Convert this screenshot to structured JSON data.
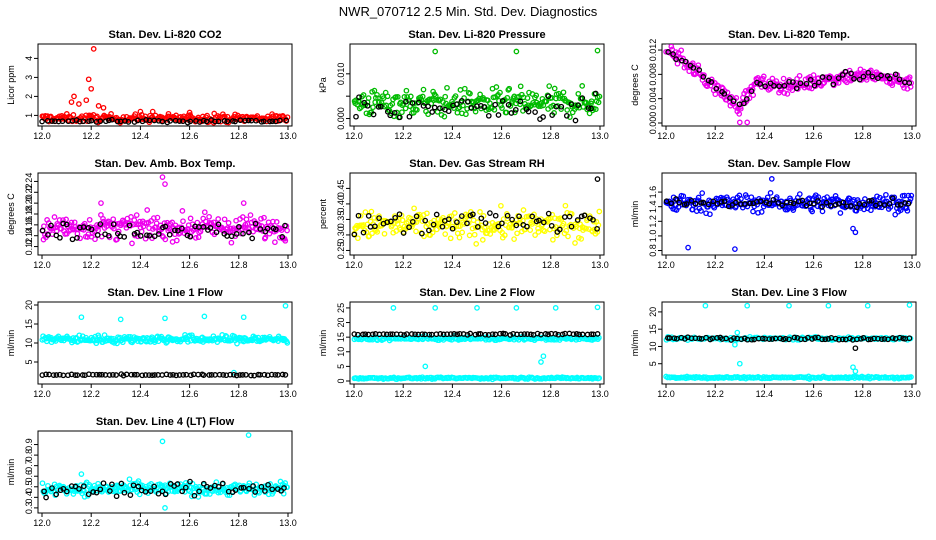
{
  "title": "NWR_070712  2.5 Min. Std. Dev. Diagnostics",
  "chart_data": [
    {
      "type": "scatter",
      "title": "Stan. Dev. Li-820 CO2",
      "ylabel": "Licor ppm",
      "color": "#ff0000",
      "xlim": [
        12.0,
        13.0
      ],
      "ylim": [
        0.6,
        4.6
      ],
      "xticks": [
        "12.0",
        "12.2",
        "12.4",
        "12.6",
        "12.8",
        "13.0"
      ],
      "yticks": [
        {
          "v": 1,
          "label": "1"
        },
        {
          "v": 2,
          "label": "2"
        },
        {
          "v": 3,
          "label": "3"
        },
        {
          "v": 4,
          "label": "4"
        }
      ],
      "series": [
        {
          "name": "colored",
          "color": "#ff0000",
          "base": 0.85,
          "spread": 0.2,
          "n": 230,
          "extra": [
            [
              12.21,
              4.5
            ],
            [
              12.19,
              2.9
            ],
            [
              12.2,
              2.4
            ],
            [
              12.13,
              2.0
            ],
            [
              12.12,
              1.7
            ],
            [
              12.15,
              1.6
            ],
            [
              12.18,
              1.8
            ],
            [
              12.23,
              1.5
            ],
            [
              12.25,
              1.4
            ],
            [
              12.4,
              1.2
            ],
            [
              12.45,
              1.2
            ],
            [
              12.7,
              1.1
            ],
            [
              12.6,
              1.15
            ]
          ]
        },
        {
          "name": "black",
          "color": "#000000",
          "base": 0.7,
          "spread": 0.06,
          "n": 60,
          "extra": []
        }
      ]
    },
    {
      "type": "scatter",
      "title": "Stan. Dev. Li-820 Pressure",
      "ylabel": "kPa",
      "color": "#00bb00",
      "xlim": [
        12.0,
        13.0
      ],
      "ylim": [
        -0.001,
        0.016
      ],
      "xticks": [
        "12.0",
        "12.2",
        "12.4",
        "12.6",
        "12.8",
        "13.0"
      ],
      "yticks": [
        {
          "v": 0.0,
          "label": "0.000"
        },
        {
          "v": 0.005,
          "label": ""
        },
        {
          "v": 0.01,
          "label": "0.010"
        }
      ],
      "series": [
        {
          "name": "colored",
          "color": "#00bb00",
          "base": 0.0035,
          "spread": 0.003,
          "n": 260,
          "extra": [
            [
              12.33,
              0.015
            ],
            [
              12.66,
              0.015
            ],
            [
              12.99,
              0.0152
            ]
          ]
        },
        {
          "name": "black",
          "color": "#000000",
          "base": 0.0025,
          "spread": 0.0025,
          "n": 55,
          "extra": []
        }
      ]
    },
    {
      "type": "scatter",
      "title": "Stan. Dev. Li-820 Temp.",
      "ylabel": "degrees C",
      "color": "#ee00ee",
      "xlim": [
        12.0,
        13.0
      ],
      "ylim": [
        0.0,
        0.0125
      ],
      "xticks": [
        "12.0",
        "12.2",
        "12.4",
        "12.6",
        "12.8",
        "13.0"
      ],
      "yticks": [
        {
          "v": 0.0,
          "label": "0.000"
        },
        {
          "v": 0.004,
          "label": "0.004"
        },
        {
          "v": 0.008,
          "label": "0.008"
        },
        {
          "v": 0.012,
          "label": "0.012"
        }
      ],
      "series": [
        {
          "name": "colored",
          "color": "#ee00ee",
          "base": -1,
          "spread": 0.0012,
          "n": 260,
          "extra": [
            [
              12.3,
              0.0001
            ],
            [
              12.33,
              0.0001
            ]
          ]
        },
        {
          "name": "black",
          "color": "#000000",
          "base": -1,
          "spread": 0.0008,
          "n": 55,
          "extra": []
        }
      ]
    },
    {
      "type": "scatter",
      "title": "Stan. Dev. Amb. Box Temp.",
      "ylabel": "degrees C",
      "color": "#ee00ee",
      "xlim": [
        12.0,
        13.0
      ],
      "ylim": [
        0.11,
        0.25
      ],
      "xticks": [
        "12.0",
        "12.2",
        "12.4",
        "12.6",
        "12.8",
        "13.0"
      ],
      "yticks": [
        {
          "v": 0.12,
          "label": "0.12"
        },
        {
          "v": 0.14,
          "label": "0.14"
        },
        {
          "v": 0.16,
          "label": "0.16"
        },
        {
          "v": 0.18,
          "label": "0.18"
        },
        {
          "v": 0.2,
          "label": "0.20"
        },
        {
          "v": 0.22,
          "label": "0.22"
        },
        {
          "v": 0.24,
          "label": "0.24"
        }
      ],
      "series": [
        {
          "name": "colored",
          "color": "#ee00ee",
          "base": 0.155,
          "spread": 0.022,
          "n": 260,
          "extra": [
            [
              12.49,
              0.248
            ],
            [
              12.5,
              0.235
            ],
            [
              12.24,
              0.2
            ],
            [
              12.82,
              0.2
            ]
          ]
        },
        {
          "name": "black",
          "color": "#000000",
          "base": 0.15,
          "spread": 0.015,
          "n": 60,
          "extra": []
        }
      ]
    },
    {
      "type": "scatter",
      "title": "Stan. Dev. Gas Stream RH",
      "ylabel": "percent",
      "color": "#ffff00",
      "xlim": [
        12.0,
        13.0
      ],
      "ylim": [
        0.245,
        0.49
      ],
      "xticks": [
        "12.0",
        "12.2",
        "12.4",
        "12.6",
        "12.8",
        "13.0"
      ],
      "yticks": [
        {
          "v": 0.25,
          "label": "0.25"
        },
        {
          "v": 0.3,
          "label": "0.30"
        },
        {
          "v": 0.35,
          "label": "0.35"
        },
        {
          "v": 0.4,
          "label": "0.40"
        },
        {
          "v": 0.45,
          "label": "0.45"
        }
      ],
      "series": [
        {
          "name": "colored",
          "color": "#ffff00",
          "base": 0.33,
          "spread": 0.045,
          "n": 260,
          "extra": []
        },
        {
          "name": "black",
          "color": "#000000",
          "base": 0.34,
          "spread": 0.04,
          "n": 60,
          "extra": [
            [
              12.99,
              0.48
            ]
          ]
        }
      ]
    },
    {
      "type": "scatter",
      "title": "Stan. Dev. Sample Flow",
      "ylabel": "ml/min",
      "color": "#0000ff",
      "xlim": [
        12.0,
        13.0
      ],
      "ylim": [
        0.78,
        1.82
      ],
      "xticks": [
        "12.0",
        "12.2",
        "12.4",
        "12.6",
        "12.8",
        "13.0"
      ],
      "yticks": [
        {
          "v": 0.8,
          "label": "0.8"
        },
        {
          "v": 1.0,
          "label": "1.0"
        },
        {
          "v": 1.2,
          "label": "1.2"
        },
        {
          "v": 1.4,
          "label": "1.4"
        },
        {
          "v": 1.6,
          "label": "1.6"
        }
      ],
      "series": [
        {
          "name": "colored",
          "color": "#0000ff",
          "base": 1.45,
          "spread": 0.12,
          "n": 260,
          "extra": [
            [
              12.09,
              0.84
            ],
            [
              12.28,
              0.82
            ],
            [
              12.43,
              1.78
            ],
            [
              12.76,
              1.1
            ],
            [
              12.77,
              1.05
            ]
          ]
        },
        {
          "name": "black",
          "color": "#000000",
          "base": 1.45,
          "spread": 0.05,
          "n": 60,
          "extra": []
        }
      ]
    },
    {
      "type": "scatter",
      "title": "Stan. Dev. Line 1 Flow",
      "ylabel": "ml/min",
      "color": "#00ffff",
      "xlim": [
        12.0,
        13.0
      ],
      "ylim": [
        0.0,
        20.0
      ],
      "xticks": [
        "12.0",
        "12.2",
        "12.4",
        "12.6",
        "12.8",
        "13.0"
      ],
      "yticks": [
        {
          "v": 5,
          "label": "5"
        },
        {
          "v": 10,
          "label": "10"
        },
        {
          "v": 15,
          "label": "15"
        },
        {
          "v": 20,
          "label": "20"
        }
      ],
      "series": [
        {
          "name": "colored",
          "color": "#00ffff",
          "base": 11.0,
          "spread": 1.0,
          "n": 260,
          "extra": [
            [
              12.16,
              16.8
            ],
            [
              12.32,
              16.2
            ],
            [
              12.5,
              16.5
            ],
            [
              12.66,
              17.0
            ],
            [
              12.82,
              16.8
            ],
            [
              12.99,
              19.8
            ],
            [
              12.78,
              2.2
            ]
          ]
        },
        {
          "name": "black",
          "color": "#000000",
          "base": 1.6,
          "spread": 0.15,
          "n": 70,
          "extra": []
        }
      ]
    },
    {
      "type": "scatter",
      "title": "Stan. Dev. Line 2 Flow",
      "ylabel": "ml/min",
      "color": "#00ffff",
      "xlim": [
        12.0,
        13.0
      ],
      "ylim": [
        0.0,
        26.0
      ],
      "xticks": [
        "12.0",
        "12.2",
        "12.4",
        "12.6",
        "12.8",
        "13.0"
      ],
      "yticks": [
        {
          "v": 0,
          "label": "0"
        },
        {
          "v": 5,
          "label": "5"
        },
        {
          "v": 10,
          "label": "10"
        },
        {
          "v": 15,
          "label": "15"
        },
        {
          "v": 20,
          "label": "20"
        },
        {
          "v": 25,
          "label": "25"
        }
      ],
      "series": [
        {
          "name": "colored",
          "color": "#00ffff",
          "base": 14.5,
          "spread": 0.6,
          "n": 180,
          "extra": [
            [
              12.16,
              25.0
            ],
            [
              12.33,
              25.0
            ],
            [
              12.5,
              25.0
            ],
            [
              12.66,
              25.0
            ],
            [
              12.82,
              25.0
            ],
            [
              12.99,
              25.2
            ],
            [
              12.29,
              5.0
            ],
            [
              12.76,
              6.5
            ],
            [
              12.77,
              8.5
            ]
          ]
        },
        {
          "name": "colored-low",
          "color": "#00ffff",
          "base": 1.0,
          "spread": 0.3,
          "n": 180,
          "extra": []
        },
        {
          "name": "black",
          "color": "#000000",
          "base": 16.0,
          "spread": 0.3,
          "n": 70,
          "extra": []
        }
      ]
    },
    {
      "type": "scatter",
      "title": "Stan. Dev. Line 3 Flow",
      "ylabel": "ml/min",
      "color": "#00ffff",
      "xlim": [
        12.0,
        13.0
      ],
      "ylim": [
        0.0,
        22.0
      ],
      "xticks": [
        "12.0",
        "12.2",
        "12.4",
        "12.6",
        "12.8",
        "13.0"
      ],
      "yticks": [
        {
          "v": 5,
          "label": "5"
        },
        {
          "v": 10,
          "label": "10"
        },
        {
          "v": 15,
          "label": "15"
        },
        {
          "v": 20,
          "label": "20"
        }
      ],
      "series": [
        {
          "name": "colored",
          "color": "#00ffff",
          "base": 12.3,
          "spread": 0.4,
          "n": 150,
          "extra": [
            [
              12.16,
              21.8
            ],
            [
              12.33,
              21.8
            ],
            [
              12.5,
              21.8
            ],
            [
              12.66,
              21.8
            ],
            [
              12.82,
              21.8
            ],
            [
              12.99,
              22.0
            ],
            [
              12.28,
              10.5
            ],
            [
              12.29,
              14.0
            ],
            [
              12.3,
              5.0
            ],
            [
              12.76,
              4.0
            ],
            [
              12.77,
              2.8
            ]
          ]
        },
        {
          "name": "colored-low",
          "color": "#00ffff",
          "base": 1.0,
          "spread": 0.3,
          "n": 180,
          "extra": []
        },
        {
          "name": "black",
          "color": "#000000",
          "base": 12.3,
          "spread": 0.35,
          "n": 70,
          "extra": [
            [
              12.77,
              9.5
            ]
          ]
        }
      ]
    },
    {
      "type": "scatter",
      "title": "Stan. Dev. Line 4 (LT) Flow",
      "ylabel": "ml/min",
      "color": "#00ffff",
      "xlim": [
        12.0,
        13.0
      ],
      "ylim": [
        0.28,
        1.0
      ],
      "xticks": [
        "12.0",
        "12.2",
        "12.4",
        "12.6",
        "12.8",
        "13.0"
      ],
      "yticks": [
        {
          "v": 0.3,
          "label": "0.3"
        },
        {
          "v": 0.4,
          "label": "0.4"
        },
        {
          "v": 0.5,
          "label": "0.5"
        },
        {
          "v": 0.6,
          "label": "0.6"
        },
        {
          "v": 0.7,
          "label": "0.7"
        },
        {
          "v": 0.8,
          "label": "0.8"
        },
        {
          "v": 0.9,
          "label": "0.9"
        }
      ],
      "series": [
        {
          "name": "colored",
          "color": "#00ffff",
          "base": 0.48,
          "spread": 0.06,
          "n": 260,
          "extra": [
            [
              12.49,
              0.93
            ],
            [
              12.84,
              0.99
            ],
            [
              12.16,
              0.62
            ],
            [
              12.5,
              0.3
            ]
          ]
        },
        {
          "name": "black",
          "color": "#000000",
          "base": 0.48,
          "spread": 0.06,
          "n": 60,
          "extra": []
        }
      ]
    }
  ]
}
